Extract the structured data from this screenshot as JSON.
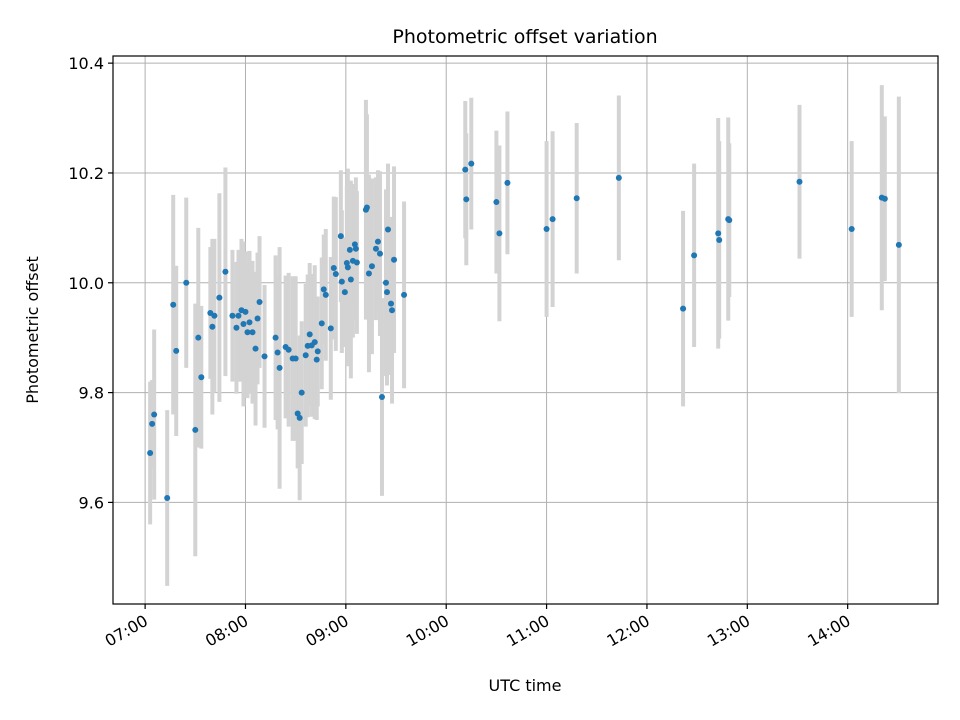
{
  "chart_data": {
    "type": "scatter",
    "title": "Photometric offset variation",
    "xlabel": "UTC time",
    "ylabel": "Photometric offset",
    "x_unit": "hours (UTC)",
    "xlim": [
      6.68,
      14.9
    ],
    "ylim": [
      9.415,
      10.413
    ],
    "x_ticks": [
      {
        "value": 7,
        "label": "07:00"
      },
      {
        "value": 8,
        "label": "08:00"
      },
      {
        "value": 9,
        "label": "09:00"
      },
      {
        "value": 10,
        "label": "10:00"
      },
      {
        "value": 11,
        "label": "11:00"
      },
      {
        "value": 12,
        "label": "12:00"
      },
      {
        "value": 13,
        "label": "13:00"
      },
      {
        "value": 14,
        "label": "14:00"
      }
    ],
    "y_ticks": [
      {
        "value": 9.6,
        "label": "9.6"
      },
      {
        "value": 9.8,
        "label": "9.8"
      },
      {
        "value": 10.0,
        "label": "10.0"
      },
      {
        "value": 10.2,
        "label": "10.2"
      },
      {
        "value": 10.4,
        "label": "10.4"
      }
    ],
    "grid": true,
    "marker_color": "#1f77b4",
    "errorbar_color": "#d3d3d3",
    "points": [
      [
        7.05,
        9.69,
        0.13
      ],
      [
        7.07,
        9.743,
        0.08
      ],
      [
        7.09,
        9.76,
        0.155
      ],
      [
        7.22,
        9.608,
        0.16
      ],
      [
        7.28,
        9.96,
        0.2
      ],
      [
        7.31,
        9.876,
        0.155
      ],
      [
        7.41,
        10.0,
        0.155
      ],
      [
        7.5,
        9.732,
        0.23
      ],
      [
        7.53,
        9.9,
        0.2
      ],
      [
        7.56,
        9.828,
        0.13
      ],
      [
        7.65,
        9.945,
        0.12
      ],
      [
        7.67,
        9.92,
        0.16
      ],
      [
        7.69,
        9.94,
        0.14
      ],
      [
        7.74,
        9.973,
        0.19
      ],
      [
        7.8,
        10.02,
        0.19
      ],
      [
        7.87,
        9.94,
        0.12
      ],
      [
        7.91,
        9.918,
        0.12
      ],
      [
        7.93,
        9.94,
        0.12
      ],
      [
        7.96,
        9.95,
        0.13
      ],
      [
        7.98,
        9.925,
        0.15
      ],
      [
        8.0,
        9.947,
        0.11
      ],
      [
        8.02,
        9.91,
        0.12
      ],
      [
        8.04,
        9.928,
        0.13
      ],
      [
        8.07,
        9.91,
        0.13
      ],
      [
        8.1,
        9.88,
        0.14
      ],
      [
        8.12,
        9.935,
        0.12
      ],
      [
        8.14,
        9.965,
        0.12
      ],
      [
        8.19,
        9.866,
        0.13
      ],
      [
        8.3,
        9.9,
        0.15
      ],
      [
        8.32,
        9.873,
        0.14
      ],
      [
        8.34,
        9.845,
        0.22
      ],
      [
        8.4,
        9.883,
        0.13
      ],
      [
        8.43,
        9.878,
        0.14
      ],
      [
        8.47,
        9.862,
        0.15
      ],
      [
        8.5,
        9.862,
        0.15
      ],
      [
        8.52,
        9.762,
        0.1
      ],
      [
        8.54,
        9.754,
        0.15
      ],
      [
        8.56,
        9.8,
        0.13
      ],
      [
        8.6,
        9.868,
        0.13
      ],
      [
        8.62,
        9.885,
        0.13
      ],
      [
        8.64,
        9.906,
        0.13
      ],
      [
        8.66,
        9.886,
        0.13
      ],
      [
        8.69,
        9.892,
        0.14
      ],
      [
        8.71,
        9.86,
        0.11
      ],
      [
        8.72,
        9.875,
        0.1
      ],
      [
        8.76,
        9.926,
        0.12
      ],
      [
        8.78,
        9.988,
        0.1
      ],
      [
        8.8,
        9.978,
        0.12
      ],
      [
        8.85,
        9.917,
        0.13
      ],
      [
        8.88,
        10.027,
        0.13
      ],
      [
        8.9,
        10.016,
        0.14
      ],
      [
        8.95,
        10.085,
        0.12
      ],
      [
        8.96,
        10.002,
        0.13
      ],
      [
        8.99,
        9.983,
        0.1
      ],
      [
        9.01,
        10.036,
        0.14
      ],
      [
        9.02,
        10.028,
        0.18
      ],
      [
        9.04,
        10.06,
        0.11
      ],
      [
        9.05,
        10.006,
        0.18
      ],
      [
        9.07,
        10.04,
        0.14
      ],
      [
        9.09,
        10.07,
        0.11
      ],
      [
        9.1,
        10.062,
        0.13
      ],
      [
        9.11,
        10.037,
        0.13
      ],
      [
        9.2,
        10.133,
        0.2
      ],
      [
        9.21,
        10.137,
        0.17
      ],
      [
        9.23,
        10.017,
        0.18
      ],
      [
        9.26,
        10.03,
        0.16
      ],
      [
        9.3,
        10.062,
        0.13
      ],
      [
        9.32,
        10.075,
        0.13
      ],
      [
        9.34,
        10.053,
        0.15
      ],
      [
        9.36,
        9.792,
        0.18
      ],
      [
        9.4,
        10.0,
        0.17
      ],
      [
        9.41,
        9.983,
        0.17
      ],
      [
        9.42,
        10.097,
        0.12
      ],
      [
        9.45,
        9.962,
        0.13
      ],
      [
        9.46,
        9.95,
        0.17
      ],
      [
        9.48,
        10.042,
        0.17
      ],
      [
        9.58,
        9.978,
        0.17
      ],
      [
        10.19,
        10.206,
        0.125
      ],
      [
        10.2,
        10.152,
        0.12
      ],
      [
        10.25,
        10.217,
        0.12
      ],
      [
        10.5,
        10.147,
        0.13
      ],
      [
        10.53,
        10.09,
        0.16
      ],
      [
        10.61,
        10.182,
        0.13
      ],
      [
        11.0,
        10.098,
        0.16
      ],
      [
        11.06,
        10.116,
        0.16
      ],
      [
        11.3,
        10.154,
        0.137
      ],
      [
        11.72,
        10.191,
        0.15
      ],
      [
        12.36,
        9.953,
        0.178
      ],
      [
        12.47,
        10.05,
        0.167
      ],
      [
        12.71,
        10.09,
        0.21
      ],
      [
        12.72,
        10.078,
        0.18
      ],
      [
        12.81,
        10.116,
        0.185
      ],
      [
        12.82,
        10.114,
        0.14
      ],
      [
        13.52,
        10.184,
        0.14
      ],
      [
        14.04,
        10.098,
        0.16
      ],
      [
        14.34,
        10.155,
        0.205
      ],
      [
        14.37,
        10.153,
        0.15
      ],
      [
        14.51,
        10.069,
        0.27
      ]
    ]
  }
}
